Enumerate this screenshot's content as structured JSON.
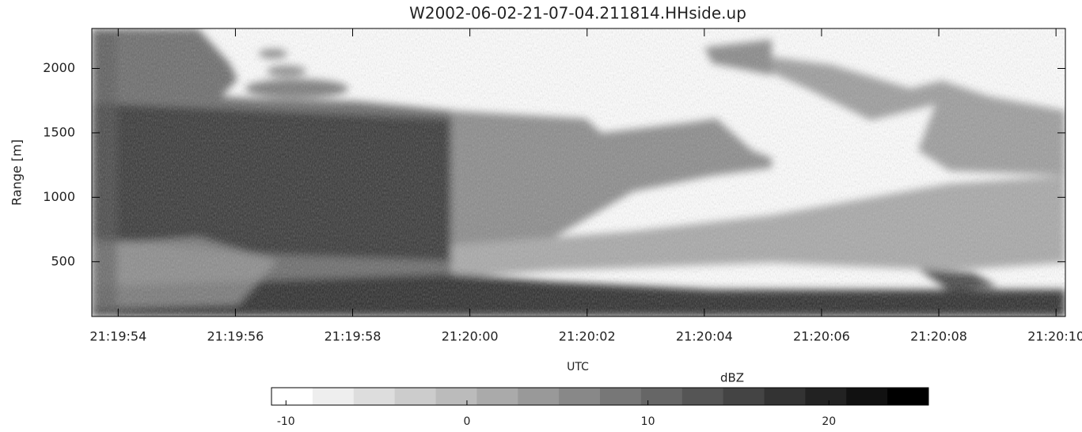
{
  "chart_data": {
    "type": "heatmap",
    "title": "W2002-06-02-21-07-04.211814.HHside.up",
    "xlabel": "UTC",
    "ylabel": "Range [m]",
    "xlim": [
      53.55,
      70.16
    ],
    "xticks": [
      {
        "value": 54,
        "label": "21:19:54"
      },
      {
        "value": 56,
        "label": "21:19:56"
      },
      {
        "value": 58,
        "label": "21:19:58"
      },
      {
        "value": 60,
        "label": "21:20:00"
      },
      {
        "value": 62,
        "label": "21:20:02"
      },
      {
        "value": 64,
        "label": "21:20:04"
      },
      {
        "value": 66,
        "label": "21:20:06"
      },
      {
        "value": 68,
        "label": "21:20:08"
      },
      {
        "value": 70,
        "label": "21:20:10"
      }
    ],
    "ylim": [
      75,
      2310
    ],
    "yticks": [
      500,
      1000,
      1500,
      2000
    ],
    "colorbar": {
      "label": "dBZ",
      "clim": [
        -10.8,
        25.5
      ],
      "ticks": [
        -10,
        0,
        10,
        20
      ],
      "colors": [
        "#ffffff",
        "#eeeeee",
        "#dddddd",
        "#cccccc",
        "#bbbbbb",
        "#aaaaaa",
        "#999999",
        "#888888",
        "#777777",
        "#666666",
        "#555555",
        "#444444",
        "#333333",
        "#222222",
        "#111111",
        "#000000"
      ]
    }
  }
}
